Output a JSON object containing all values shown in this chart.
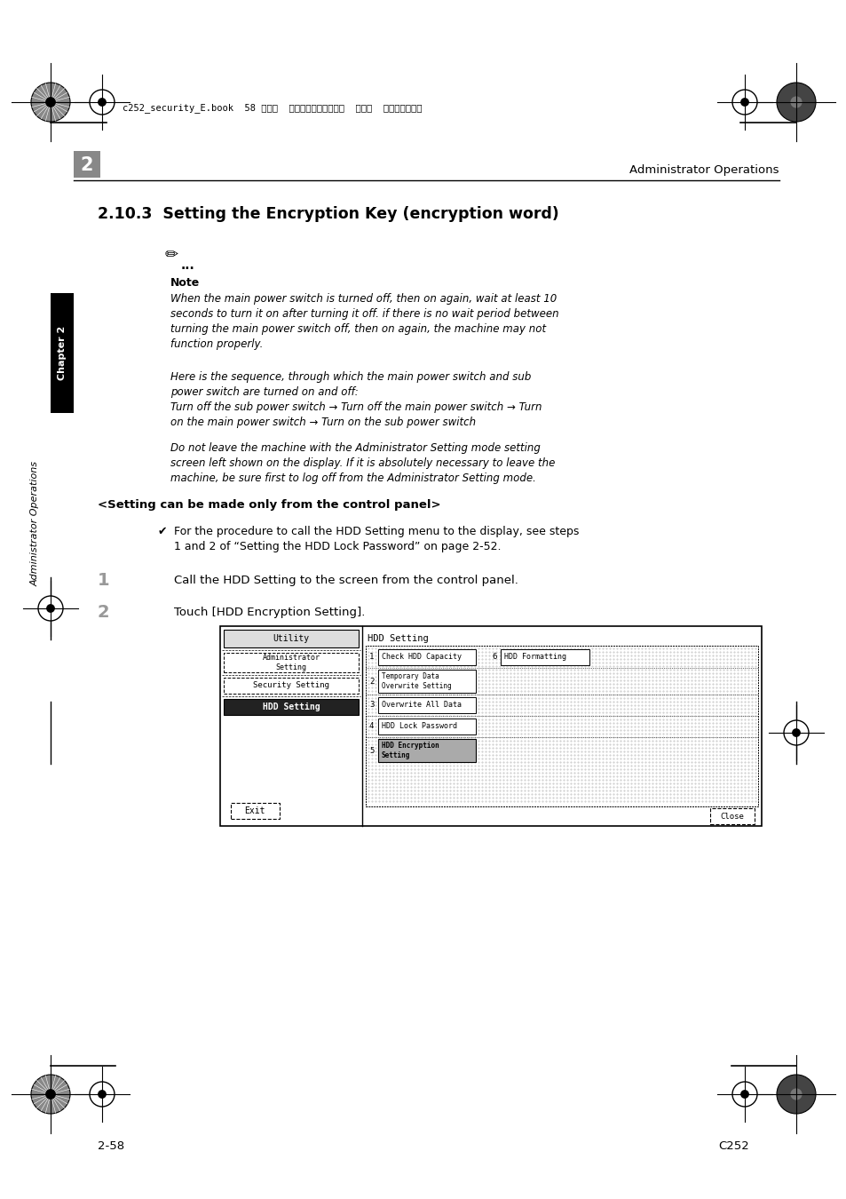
{
  "page_bg": "#ffffff",
  "header_text": "c252_security_E.book  58 ページ  ２００７年４月１０日  火曜日  午後３時４５分",
  "chapter_label": "2",
  "right_header": "Administrator Operations",
  "section_title": "2.10.3  Setting the Encryption Key (encryption word)",
  "note_label": "Note",
  "note_text1": "When the main power switch is turned off, then on again, wait at least 10\nseconds to turn it on after turning it off. if there is no wait period between\nturning the main power switch off, then on again, the machine may not\nfunction properly.",
  "note_text2": "Here is the sequence, through which the main power switch and sub\npower switch are turned on and off:",
  "note_text3": "Turn off the sub power switch → Turn off the main power switch → Turn\non the main power switch → Turn on the sub power switch",
  "note_text4": "Do not leave the machine with the Administrator Setting mode setting\nscreen left shown on the display. If it is absolutely necessary to leave the\nmachine, be sure first to log off from the Administrator Setting mode.",
  "setting_panel": "<Setting can be made only from the control panel>",
  "checkmark_text": "For the procedure to call the HDD Setting menu to the display, see steps\n1 and 2 of “Setting the HDD Lock Password” on page 2-52.",
  "step1_num": "1",
  "step1_text": "Call the HDD Setting to the screen from the control panel.",
  "step2_num": "2",
  "step2_text": "Touch [HDD Encryption Setting].",
  "sidebar_ch2": "Chapter 2",
  "sidebar_ao": "Administrator Operations",
  "footer_left": "2-58",
  "footer_right": "C252",
  "ui_utility": "Utility",
  "ui_admin": "Administrator\nSetting",
  "ui_security": "Security Setting",
  "ui_hdd": "HDD Setting",
  "ui_exit": "Exit",
  "ui_title": "HDD Setting",
  "ui_item1": "Check HDD Capacity",
  "ui_item2_line1": "Temporary Data",
  "ui_item2_line2": "Overwrite Setting",
  "ui_item3": "Overwrite All Data",
  "ui_item4": "HDD Lock Password",
  "ui_item5_line1": "HDD Encryption",
  "ui_item5_line2": "Setting",
  "ui_item6": "HDD Formatting",
  "ui_close": "Close"
}
